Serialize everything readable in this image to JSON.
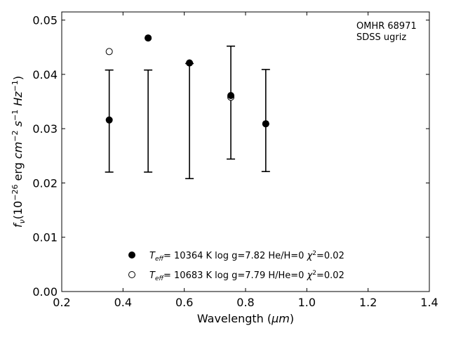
{
  "chart_data": {
    "type": "scatter",
    "xlabel_prefix": "Wavelength (",
    "xlabel_unit": "μm",
    "xlabel_suffix": ")",
    "ylabel_f": "f",
    "ylabel_nu": "ν",
    "ylabel_units": "(10",
    "ylabel_exp1": "−26",
    "ylabel_erg": " erg ",
    "ylabel_cm": "cm",
    "ylabel_exp2": "−2",
    "ylabel_s": " s",
    "ylabel_exp3": "−1",
    "ylabel_hz": " Hz",
    "ylabel_exp4": "−1",
    "ylabel_close": ")",
    "xlim": [
      0.2,
      1.4
    ],
    "ylim": [
      0.0,
      0.0515
    ],
    "xticks": [
      0.2,
      0.4,
      0.6,
      0.8,
      1.0,
      1.2,
      1.4
    ],
    "xtick_labels": [
      "0.2",
      "0.4",
      "0.6",
      "0.8",
      "1.0",
      "1.2",
      "1.4"
    ],
    "yticks": [
      0.0,
      0.01,
      0.02,
      0.03,
      0.04,
      0.05
    ],
    "ytick_labels": [
      "0.00",
      "0.01",
      "0.02",
      "0.03",
      "0.04",
      "0.05"
    ],
    "grid": false,
    "annotation_lines": [
      "OMHR 68971",
      "SDSS ugriz"
    ],
    "observed": {
      "x": [
        0.355,
        0.482,
        0.617,
        0.752,
        0.866
      ],
      "y": [
        0.0314,
        0.0314,
        0.0314,
        0.0348,
        0.0315
      ],
      "yerr": [
        0.0094,
        0.0094,
        0.0106,
        0.0104,
        0.0094
      ]
    },
    "series": [
      {
        "marker": "filled-circle",
        "teff_symbol": "T",
        "teff_sub": "eff",
        "text": "= 10364 K  log g=7.82  He/H=0  ",
        "chi_symbol": "χ",
        "chi_exp": "2",
        "chi_value": "=0.02",
        "x": [
          0.355,
          0.482,
          0.617,
          0.752,
          0.866
        ],
        "y": [
          0.0316,
          0.0467,
          0.0421,
          0.0361,
          0.0309
        ]
      },
      {
        "marker": "open-circle",
        "teff_symbol": "T",
        "teff_sub": "eff",
        "text": "= 10683 K  log g=7.79  H/He=0  ",
        "chi_symbol": "χ",
        "chi_exp": "2",
        "chi_value": "=0.02",
        "x": [
          0.355,
          0.482,
          0.617,
          0.752,
          0.866
        ],
        "y": [
          0.0442,
          0.0467,
          0.0421,
          0.0358,
          0.0309
        ]
      }
    ],
    "legend_placement": "lower-center",
    "colors": {
      "marker": "#000000",
      "axes": "#000000",
      "background": "#ffffff"
    }
  }
}
